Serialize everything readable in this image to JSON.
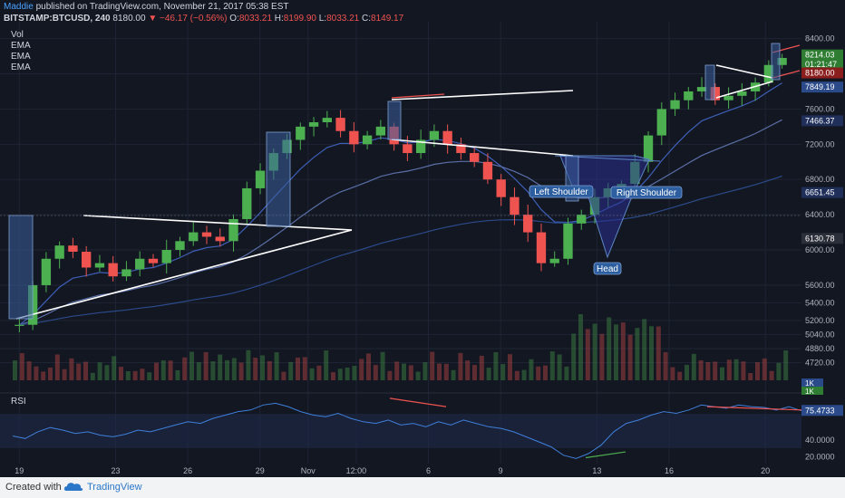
{
  "header": {
    "author": "Maddie",
    "published_text": " published on TradingView.com, November 21, 2017 05:38 EST",
    "symbol": "BITSTAMP:BTCUSD, 240",
    "last": "8180.00",
    "change": "−46.17 (−0.56%)",
    "o_label": "O:",
    "o": "8033.21",
    "h_label": "H:",
    "h": "8199.90",
    "l_label": "L:",
    "l": "8033.21",
    "c_label": "C:",
    "c": "8149.17"
  },
  "indicators": [
    "Vol",
    "EMA",
    "EMA",
    "EMA"
  ],
  "rsi_label": "RSI",
  "footer": {
    "created": "Created with",
    "brand": "TradingView"
  },
  "colors": {
    "up": "#4caf50",
    "down": "#ef5350",
    "bg": "#131722",
    "grid": "#1e2433",
    "ema_fast": "#3e5fb8",
    "ema_mid": "#5a6fa8",
    "ema_slow": "#2b4a8a",
    "pattern_fill": "#2a2f8f",
    "rsi_line": "#3f7fd9",
    "highlight": "#5b86c4"
  },
  "chart_data": {
    "type": "candlestick",
    "x_ticks": [
      {
        "label": "19",
        "x": 0.5
      },
      {
        "label": "23",
        "x": 4.5
      },
      {
        "label": "26",
        "x": 7.5
      },
      {
        "label": "29",
        "x": 10.5
      },
      {
        "label": "Nov",
        "x": 12.5
      },
      {
        "label": "12:00",
        "x": 14.5
      },
      {
        "label": "6",
        "x": 17.5
      },
      {
        "label": "9",
        "x": 20.5
      },
      {
        "label": "13",
        "x": 24.5
      },
      {
        "label": "16",
        "x": 27.5
      },
      {
        "label": "20",
        "x": 31.5
      }
    ],
    "x_range": [
      0,
      33
    ],
    "price_ticks": [
      "8400.00",
      "8000.00",
      "7600.00",
      "7200.00",
      "6800.00",
      "6400.00",
      "6000.00",
      "5600.00",
      "5400.00",
      "5200.00",
      "5040.00",
      "4880.00",
      "4720.00"
    ],
    "price_range": [
      4520,
      8550
    ],
    "price_labels": [
      {
        "label": "8214.03",
        "value": 8214.03,
        "color": "#2e7d32"
      },
      {
        "label": "01:21:47",
        "value": 8110,
        "color": "#2e7d32"
      },
      {
        "label": "8180.00",
        "value": 8010,
        "color": "#8b1d1d"
      },
      {
        "label": "7849.19",
        "value": 7849.19,
        "color": "#2b4a8a"
      },
      {
        "label": "7466.37",
        "value": 7466.37,
        "color": "#1f2f5a"
      },
      {
        "label": "6651.45",
        "value": 6651.45,
        "color": "#1f2f5a"
      },
      {
        "label": "6130.78",
        "value": 6130.78,
        "color": "#2b2f3a"
      }
    ],
    "volume_labels": [
      "1K",
      "1K"
    ],
    "rsi_ticks": [
      "75.4733",
      "40.0000",
      "20.0000"
    ],
    "rsi_range": [
      12,
      92
    ],
    "rsi_last": 75.47,
    "rsi_series": [
      45,
      42,
      50,
      55,
      52,
      48,
      50,
      46,
      44,
      47,
      52,
      50,
      54,
      58,
      62,
      60,
      66,
      70,
      74,
      76,
      82,
      84,
      80,
      74,
      70,
      68,
      72,
      66,
      62,
      60,
      64,
      58,
      60,
      56,
      62,
      58,
      64,
      60,
      56,
      54,
      50,
      44,
      38,
      32,
      22,
      18,
      24,
      34,
      50,
      60,
      64,
      70,
      74,
      72,
      76,
      82,
      80,
      78,
      82,
      80,
      79,
      76,
      80,
      75
    ],
    "ohlc_close": [
      5150,
      5600,
      5900,
      6050,
      5980,
      5800,
      5850,
      5700,
      5780,
      5900,
      5850,
      6000,
      6100,
      6200,
      6150,
      6100,
      6350,
      6700,
      6900,
      7100,
      7250,
      7400,
      7450,
      7500,
      7350,
      7200,
      7300,
      7400,
      7200,
      7100,
      7250,
      7350,
      7200,
      7100,
      7000,
      6800,
      6600,
      6400,
      6200,
      5850,
      5900,
      6300,
      6400,
      6600,
      6700,
      6750,
      7000,
      7300,
      7600,
      7700,
      7800,
      7850,
      7700,
      7750,
      7800,
      7900,
      8100,
      8180
    ],
    "annotations": [
      "Left Shoulder",
      "Head",
      "Right Shoulder"
    ]
  }
}
